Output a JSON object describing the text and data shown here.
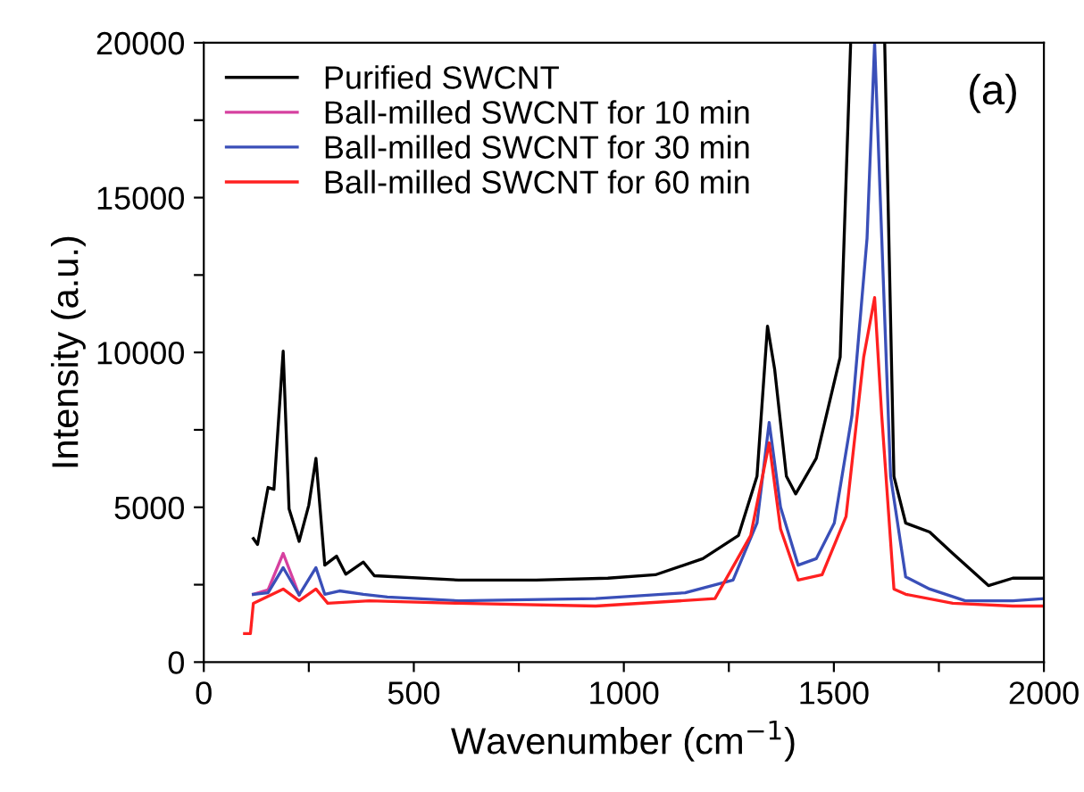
{
  "chart_data": {
    "type": "line",
    "xlabel": "Wavenumber (cm$^{−1}$)",
    "ylabel": "Intensity (a.u.)",
    "annotations": [
      "(a)"
    ],
    "xlim": [
      0,
      2000
    ],
    "xticks": [
      0,
      {
        "value": 250,
        "label": null
      },
      500,
      {
        "value": 750,
        "label": null
      },
      1000,
      {
        "value": 1250,
        "label": null
      },
      1500,
      {
        "value": 1750,
        "label": null
      },
      2000
    ],
    "ylim": [
      0,
      20000
    ],
    "yticks": [
      0,
      {
        "value": 2500,
        "label": null
      },
      5000,
      {
        "value": 7500,
        "label": null
      },
      10000,
      {
        "value": 12500,
        "label": null
      },
      15000,
      {
        "value": 17500,
        "label": null
      },
      20000
    ],
    "grid": false,
    "legend": "top left",
    "marker": "none",
    "line_style": "solid",
    "series": [
      {
        "name": "Purified SWCNT",
        "color": "#000000",
        "x": [
          118,
          128,
          153,
          167,
          189,
          203,
          227,
          250,
          267,
          288,
          316,
          338,
          380,
          406,
          607,
          791,
          962,
          1075,
          1188,
          1273,
          1317,
          1342,
          1359,
          1387,
          1409,
          1458,
          1515,
          1540,
          1580,
          1621,
          1643,
          1671,
          1728,
          1783,
          1868,
          1926,
          2000
        ],
        "values": [
          3990,
          3800,
          5640,
          5580,
          10040,
          4950,
          3900,
          5070,
          6580,
          3130,
          3420,
          2840,
          3230,
          2790,
          2650,
          2650,
          2710,
          2820,
          3340,
          4090,
          6000,
          10850,
          9460,
          6000,
          5430,
          6580,
          9850,
          20000,
          null,
          20000,
          6000,
          4490,
          4200,
          3510,
          2470,
          2710,
          2710
        ]
      },
      {
        "name": "Ball-milled SWCNT for 10 min",
        "color": "#d6409f",
        "x": [
          118,
          153,
          189,
          227
        ],
        "values": [
          2190,
          2330,
          3510,
          2170
        ]
      },
      {
        "name": "Ball-milled SWCNT for 30 min",
        "color": "#3a4fb8",
        "x": [
          118,
          153,
          189,
          227,
          267,
          288,
          323,
          380,
          437,
          607,
          933,
          1146,
          1260,
          1317,
          1346,
          1373,
          1415,
          1458,
          1501,
          1543,
          1579,
          1597,
          1614,
          1635,
          1671,
          1728,
          1813,
          1926,
          2000
        ],
        "values": [
          2190,
          2240,
          3050,
          2170,
          3050,
          2190,
          2300,
          2190,
          2100,
          1980,
          2050,
          2240,
          2650,
          4490,
          7740,
          5010,
          3130,
          3340,
          4490,
          7950,
          13690,
          20000,
          13690,
          6000,
          2750,
          2360,
          1980,
          1980,
          2050
        ]
      },
      {
        "name": "Ball-milled SWCNT for 60 min",
        "color": "#ff2020",
        "x": [
          97,
          111,
          118,
          189,
          227,
          267,
          295,
          394,
          607,
          933,
          1217,
          1302,
          1346,
          1373,
          1415,
          1472,
          1529,
          1571,
          1597,
          1614,
          1643,
          1671,
          1783,
          1926,
          2000
        ],
        "values": [
          920,
          920,
          1900,
          2360,
          1980,
          2360,
          1900,
          1980,
          1900,
          1810,
          2050,
          4090,
          7080,
          4300,
          2650,
          2820,
          4700,
          9850,
          11770,
          7950,
          2360,
          2190,
          1900,
          1810,
          1810
        ]
      }
    ]
  }
}
